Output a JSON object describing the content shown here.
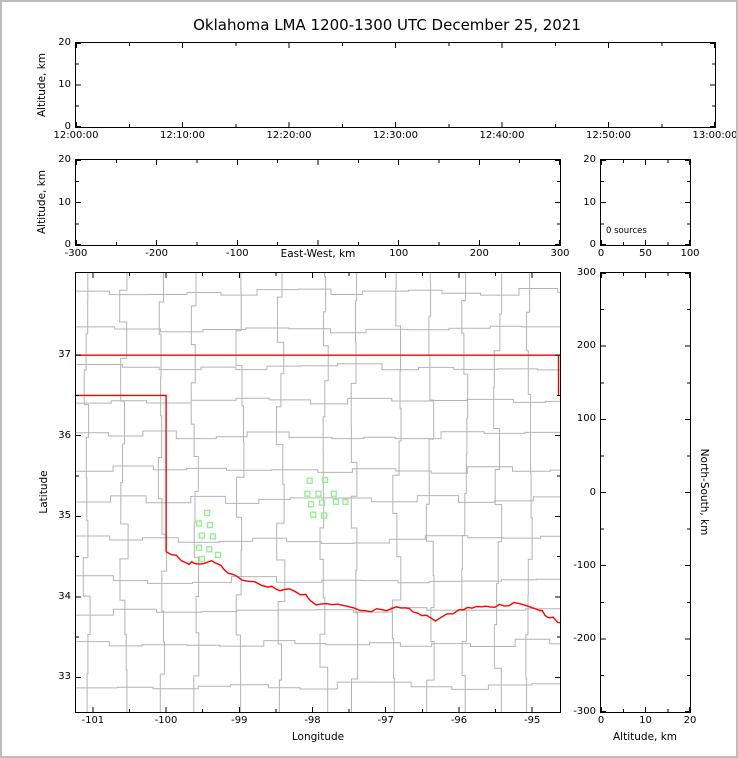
{
  "title": "Oklahoma LMA 1200-1300 UTC December 25, 2021",
  "colors": {
    "state_border": "#ff0000",
    "county_lines": "#b4b4b4",
    "station_marker": "#90ee90",
    "axes": "#000000",
    "figure_border": "#bdbdbd",
    "background": "#ffffff"
  },
  "panels": {
    "time_height": {
      "ylabel": "Altitude, km",
      "x_tick_labels": [
        "12:00:00",
        "12:10:00",
        "12:20:00",
        "12:30:00",
        "12:40:00",
        "12:50:00",
        "13:00:00"
      ],
      "y_tick_labels": [
        "20",
        "10",
        "0"
      ]
    },
    "ew_height": {
      "xlabel": "East-West, km",
      "ylabel": "Altitude, km",
      "x_tick_labels": [
        "-300",
        "-200",
        "-100",
        "0",
        "100",
        "200",
        "300"
      ],
      "y_tick_labels": [
        "20",
        "10",
        "0"
      ],
      "center_x_label_hidden": true
    },
    "altitude_histogram": {
      "annotation": "0 sources",
      "x_tick_labels": [
        "0",
        "50",
        "100"
      ],
      "y_tick_labels": [
        "20",
        "10",
        "0"
      ]
    },
    "map": {
      "xlabel": "Longitude",
      "ylabel": "Latitude",
      "x_tick_labels": [
        "-101",
        "-100",
        "-99",
        "-98",
        "-97",
        "-96",
        "-95"
      ],
      "y_tick_labels": [
        "37",
        "36",
        "35",
        "34",
        "33"
      ]
    },
    "ns_height": {
      "xlabel": "Altitude, km",
      "ylabel": "North-South, km",
      "x_tick_labels": [
        "0",
        "10",
        "20"
      ],
      "y_tick_labels": [
        "300",
        "200",
        "100",
        "0",
        "-100",
        "-200",
        "-300"
      ]
    }
  },
  "chart_data": [
    {
      "type": "scatter",
      "panel": "time_height",
      "description": "Lightning source altitude vs time; panel empty (no sources this hour)",
      "x_range": [
        "12:00:00",
        "13:00:00"
      ],
      "y_range_km": [
        0,
        20
      ],
      "points": []
    },
    {
      "type": "scatter",
      "panel": "ew_height",
      "description": "Source altitude vs east-west distance; panel empty",
      "x_range_km": [
        -300,
        300
      ],
      "y_range_km": [
        0,
        20
      ],
      "points": []
    },
    {
      "type": "histogram",
      "panel": "altitude_histogram",
      "description": "Source count vs altitude; empty",
      "x_range": [
        0,
        100
      ],
      "y_range_km": [
        0,
        20
      ],
      "annotation": "0 sources",
      "bars": []
    },
    {
      "type": "scatter",
      "panel": "map",
      "description": "Plan view: Oklahoma state border in red, county lines in gray, LMA station locations as green open squares",
      "lon_range": [
        -101.23,
        -94.62
      ],
      "lat_range": [
        32.57,
        38.02
      ],
      "stations_lon_lat": [
        [
          -98.04,
          35.44
        ],
        [
          -97.83,
          35.45
        ],
        [
          -98.07,
          35.28
        ],
        [
          -97.92,
          35.28
        ],
        [
          -97.71,
          35.28
        ],
        [
          -98.02,
          35.15
        ],
        [
          -97.87,
          35.17
        ],
        [
          -97.68,
          35.18
        ],
        [
          -97.55,
          35.18
        ],
        [
          -97.99,
          35.02
        ],
        [
          -97.84,
          35.01
        ],
        [
          -99.44,
          35.04
        ],
        [
          -99.55,
          34.91
        ],
        [
          -99.4,
          34.89
        ],
        [
          -99.51,
          34.76
        ],
        [
          -99.36,
          34.75
        ],
        [
          -99.55,
          34.61
        ],
        [
          -99.41,
          34.59
        ],
        [
          -99.29,
          34.52
        ],
        [
          -99.51,
          34.47
        ]
      ],
      "oklahoma_border": {
        "kansas_line": [
          [
            -101.23,
            37.0
          ],
          [
            -94.62,
            37.0
          ]
        ],
        "panhandle_and_west": [
          [
            -101.23,
            36.5
          ],
          [
            -100.0,
            36.5
          ],
          [
            -100.0,
            34.56
          ]
        ],
        "missouri_line": [
          [
            -94.64,
            37.0
          ],
          [
            -94.64,
            36.5
          ]
        ],
        "red_river": [
          [
            -100.0,
            34.56
          ],
          [
            -99.72,
            34.42
          ],
          [
            -99.58,
            34.41
          ],
          [
            -99.38,
            34.45
          ],
          [
            -99.21,
            34.34
          ],
          [
            -98.97,
            34.21
          ],
          [
            -98.61,
            34.12
          ],
          [
            -98.39,
            34.09
          ],
          [
            -98.09,
            34.03
          ],
          [
            -97.95,
            33.9
          ],
          [
            -97.66,
            33.91
          ],
          [
            -97.35,
            33.83
          ],
          [
            -97.05,
            33.84
          ],
          [
            -96.79,
            33.86
          ],
          [
            -96.57,
            33.8
          ],
          [
            -96.32,
            33.7
          ],
          [
            -96.0,
            33.84
          ],
          [
            -95.76,
            33.88
          ],
          [
            -95.51,
            33.87
          ],
          [
            -95.25,
            33.93
          ],
          [
            -94.9,
            33.83
          ],
          [
            -94.75,
            33.74
          ],
          [
            -94.62,
            33.68
          ]
        ]
      }
    },
    {
      "type": "scatter",
      "panel": "ns_height",
      "description": "North-south distance vs altitude; panel empty",
      "x_range_km": [
        0,
        20
      ],
      "y_range_km": [
        -300,
        300
      ],
      "points": []
    }
  ]
}
